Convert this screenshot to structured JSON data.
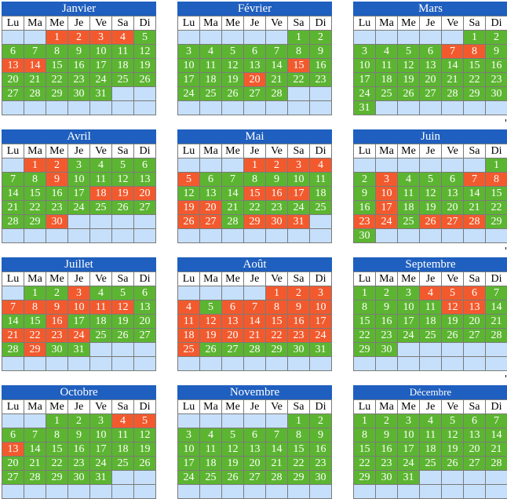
{
  "colors": {
    "header": "#1f5fbf",
    "green": "#5cb531",
    "red": "#f25a2e",
    "empty": "#c6e0fb"
  },
  "weekdays": [
    "Lu",
    "Ma",
    "Me",
    "Je",
    "Ve",
    "Sa",
    "Di"
  ],
  "months": [
    {
      "name": "Janvier",
      "start": 2,
      "days": 31,
      "red": [
        1,
        2,
        3,
        4,
        13,
        14
      ]
    },
    {
      "name": "Février",
      "start": 5,
      "days": 28,
      "red": [
        15,
        20
      ]
    },
    {
      "name": "Mars",
      "start": 5,
      "days": 31,
      "red": [
        7,
        8
      ]
    },
    {
      "name": "Avril",
      "start": 1,
      "days": 30,
      "red": [
        1,
        2,
        9,
        18,
        19,
        20,
        30
      ]
    },
    {
      "name": "Mai",
      "start": 3,
      "days": 31,
      "red": [
        1,
        2,
        3,
        4,
        5,
        15,
        16,
        17,
        19,
        20,
        26,
        27,
        29,
        30,
        31
      ]
    },
    {
      "name": "Juin",
      "start": 6,
      "days": 30,
      "red": [
        3,
        7,
        8,
        10,
        17,
        23,
        24,
        26,
        27,
        28
      ]
    },
    {
      "name": "Juillet",
      "start": 1,
      "days": 31,
      "red": [
        3,
        7,
        8,
        9,
        10,
        11,
        12,
        16,
        21,
        22,
        23,
        24,
        29
      ]
    },
    {
      "name": "Août",
      "start": 4,
      "days": 31,
      "red": [
        1,
        2,
        3,
        4,
        6,
        7,
        8,
        9,
        10,
        11,
        12,
        13,
        14,
        15,
        16,
        17,
        18,
        19,
        20,
        21,
        22,
        23,
        24,
        25
      ]
    },
    {
      "name": "Septembre",
      "start": 0,
      "days": 30,
      "red": [
        4,
        5,
        6,
        12,
        13
      ]
    },
    {
      "name": "Octobre",
      "start": 2,
      "days": 31,
      "red": [
        4,
        5,
        13
      ]
    },
    {
      "name": "Novembre",
      "start": 5,
      "days": 30,
      "red": []
    },
    {
      "name": "Décembre",
      "start": 0,
      "days": 31,
      "red": []
    }
  ]
}
